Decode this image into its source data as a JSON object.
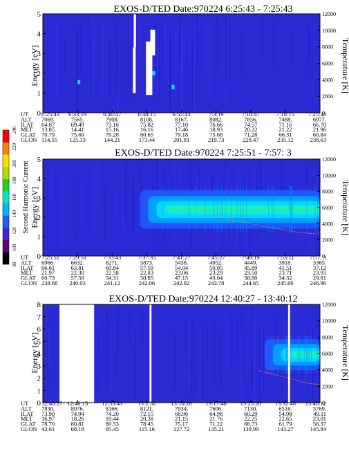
{
  "chart_data": [
    {
      "type": "heatmap",
      "title": "EXOS-D/TED   Date:970224   6:25:43 - 7:25:43",
      "ylabel_left": "Energy [eV]",
      "ylabel_right": "Temperature [K]",
      "y_ticks": [
        0,
        1,
        2,
        3,
        4,
        5
      ],
      "y2_ticks": [
        0,
        2000,
        4000,
        6000,
        8000,
        10000,
        12000
      ],
      "ylim": [
        0,
        5
      ],
      "y2lim": [
        0,
        12000
      ],
      "background": "#2b2bd6",
      "gaps": [
        {
          "from": 0.325,
          "to": 0.335,
          "ymin": 1.0,
          "ymax": 3.3
        },
        {
          "from": 0.328,
          "to": 0.336,
          "ymin": 3.3,
          "ymax": 5.0
        },
        {
          "from": 0.372,
          "to": 0.395,
          "ymin": 0.9,
          "ymax": 3.6
        },
        {
          "from": 0.388,
          "to": 0.405,
          "ymin": 2.9,
          "ymax": 4.2
        }
      ],
      "spots": [
        {
          "x": 0.13,
          "y": 1.55,
          "color": "#00e8ff"
        },
        {
          "x": 0.47,
          "y": 1.3,
          "color": "#00e8ff"
        },
        {
          "x": 0.4,
          "y": 2.0,
          "color": "#00e8ff"
        }
      ],
      "rows": {
        "UT": [
          "6:25:43",
          "6:33:19",
          "6:40:47",
          "6:48:15",
          "6:55:43",
          "7:3:19",
          "7:10:47",
          "7:18:15",
          "7:25:43"
        ],
        "ALT": [
          "7069.",
          "7565.",
          "7908.",
          "8108.",
          "8167.",
          "8082.",
          "7856.",
          "7488.",
          "6977."
        ],
        "ILAT": [
          "64.87",
          "69.49",
          "73.16",
          "75.82",
          "77.10",
          "76.66",
          "74.57",
          "71.16",
          "66.70"
        ],
        "MLT": [
          "13.85",
          "14.41",
          "15.16",
          "16.16",
          "17.46",
          "18.93",
          "20.22",
          "21.22",
          "21.96"
        ],
        "GLAT": [
          "70.79",
          "75.69",
          "79.28",
          "80.65",
          "79.18",
          "75.68",
          "71.28",
          "66.31",
          "60.84"
        ],
        "GLON": [
          "114.55",
          "125.33",
          "144.21",
          "173.44",
          "201.81",
          "219.73",
          "229.47",
          "235.12",
          "238.63"
        ]
      }
    },
    {
      "type": "heatmap",
      "title": "EXOS-D/TED   Date:970224   7:25:51 - 7:57: 3",
      "ylabel_left": "Energy [eV]",
      "ylabel_right": "Temperature [K]",
      "y_ticks": [
        0,
        1,
        2,
        3,
        4,
        5
      ],
      "y2_ticks": [
        0,
        2000,
        4000,
        6000,
        8000,
        10000,
        12000
      ],
      "ylim": [
        0,
        5
      ],
      "y2lim": [
        0,
        12000
      ],
      "background": "#2b2bd6",
      "band": {
        "start": 0.35,
        "center": 2.4,
        "halfwidth": 0.55
      },
      "temperature": [
        [
          0.55,
          5900
        ],
        [
          0.62,
          4900
        ],
        [
          0.7,
          4300
        ],
        [
          0.78,
          3800
        ],
        [
          0.86,
          3300
        ],
        [
          0.93,
          2900
        ],
        [
          1.0,
          2700
        ]
      ],
      "rows": {
        "UT": [
          "7:25:51",
          "7:29:51",
          "7:33:43",
          "7:37:35",
          "7:41:27",
          "7:45:27",
          "7:49:19",
          "7:53:11",
          "7:57: 3"
        ],
        "ALT": [
          "6966.",
          "6632.",
          "6271.",
          "5873.",
          "5438.",
          "4952.",
          "4449.",
          "3918.",
          "3365."
        ],
        "ILAT": [
          "66.61",
          "63.81",
          "60.84",
          "57.59",
          "54.04",
          "50.05",
          "45.89",
          "41.51",
          "37.12"
        ],
        "MLT": [
          "21.97",
          "22.30",
          "22.58",
          "22.83",
          "23.06",
          "23.29",
          "23.50",
          "23.71",
          "23.93"
        ],
        "GLAT": [
          "60.73",
          "57.56",
          "54.31",
          "50.85",
          "47.15",
          "43.04",
          "38.80",
          "34.32",
          "29.81"
        ],
        "GLON": [
          "238.68",
          "240.03",
          "241.12",
          "242.06",
          "242.92",
          "243.78",
          "244.65",
          "245.66",
          "246.96"
        ]
      }
    },
    {
      "type": "heatmap",
      "title": "EXOS-D/TED   Date:970224   12:40:27 - 13:40:12",
      "ylabel_left": "Energy [eV]",
      "ylabel_right": "Temperature [K]",
      "y_ticks": [
        0,
        1,
        2,
        3,
        4,
        5,
        6,
        7,
        8
      ],
      "y2_ticks": [
        0,
        2000,
        4000,
        6000,
        8000,
        10000,
        12000
      ],
      "ylim": [
        0,
        8
      ],
      "y2lim": [
        0,
        12000
      ],
      "background": "#2b2bd6",
      "gaps": [
        {
          "from": 0.06,
          "to": 0.185,
          "ymin": 0.0,
          "ymax": 8.0
        },
        {
          "from": 0.385,
          "to": 0.392,
          "ymin": 0.0,
          "ymax": 8.0
        },
        {
          "from": 0.885,
          "to": 0.892,
          "ymin": 0.0,
          "ymax": 8.0
        }
      ],
      "band": {
        "start": 0.8,
        "center": 3.9,
        "halfwidth": 0.7
      },
      "temperature": [
        [
          0.78,
          3900
        ],
        [
          0.85,
          3300
        ],
        [
          0.9,
          2900
        ],
        [
          0.95,
          2400
        ],
        [
          1.0,
          2200
        ]
      ],
      "rows": {
        "UT": [
          "12:40:27",
          "12:48:15",
          "12:55:43",
          "13:2:52",
          "13:10:20",
          "13:17:48",
          "13:25:20",
          "13:32:48",
          "13:40:12"
        ],
        "ALT": [
          "7830.",
          "8076.",
          "8166.",
          "8121.",
          "7934.",
          "7606.",
          "7130.",
          "6516.",
          "5769."
        ],
        "ILAT": [
          "73.90",
          "74.94",
          "74.20",
          "72.15",
          "68.96",
          "64.98",
          "60.29",
          "54.98",
          "49.11"
        ],
        "MLT": [
          "16.97",
          "18.26",
          "19.44",
          "20.38",
          "21.15",
          "21.76",
          "22.25",
          "22.65",
          "23.01"
        ],
        "GLAT": [
          "78.70",
          "80.81",
          "80.53",
          "78.45",
          "75.17",
          "71.22",
          "66.73",
          "61.79",
          "56.37"
        ],
        "GLON": [
          "43.61",
          "68.18",
          "95.45",
          "115.16",
          "127.72",
          "135.21",
          "139.99",
          "143.27",
          "145.84"
        ]
      }
    }
  ],
  "colorbar": {
    "label": "Second Harmonic Current",
    "ticks": [
      "80",
      "100",
      "120",
      "140",
      "160",
      "180",
      "200",
      "220",
      "240"
    ],
    "colors": [
      "#000000",
      "#5b0a6e",
      "#3a2ad6",
      "#1e5cff",
      "#00b4ff",
      "#00e8c8",
      "#20d020",
      "#b0e000",
      "#ffe000",
      "#ff8000",
      "#ff0000"
    ]
  },
  "row_labels": [
    "UT",
    "ALT",
    "ILAT",
    "MLT",
    "GLAT",
    "GLON"
  ]
}
